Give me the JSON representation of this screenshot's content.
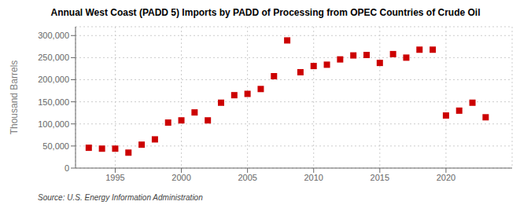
{
  "chart_data": {
    "type": "scatter",
    "title": "Annual West Coast (PADD 5) Imports by PADD of Processing from OPEC Countries of Crude Oil",
    "y_label": "Thousand Barrels",
    "annotations": [
      "Source: U.S. Energy Information Administration"
    ],
    "x": [
      1993,
      1994,
      1995,
      1996,
      1997,
      1998,
      1999,
      2000,
      2001,
      2002,
      2003,
      2004,
      2005,
      2006,
      2007,
      2008,
      2009,
      2010,
      2011,
      2012,
      2013,
      2014,
      2015,
      2016,
      2017,
      2018,
      2019,
      2020,
      2021,
      2022,
      2023
    ],
    "values": [
      46000,
      44000,
      44000,
      35000,
      53000,
      65000,
      103000,
      108000,
      126000,
      108000,
      148000,
      165000,
      168000,
      179000,
      208000,
      289000,
      217000,
      231000,
      234000,
      246000,
      255000,
      256000,
      238000,
      258000,
      250000,
      268000,
      268000,
      119000,
      130000,
      148000,
      115000
    ],
    "color": "#cc0000",
    "marker": "square",
    "xlim": [
      1992,
      2025
    ],
    "xticks": [
      1995,
      2000,
      2005,
      2010,
      2015,
      2020
    ],
    "ylim": [
      0,
      320000
    ],
    "yticks": [
      0,
      {
        "value": 50000,
        "label": "50,000"
      },
      {
        "value": 100000,
        "label": "100,000"
      },
      {
        "value": 150000,
        "label": "150,000"
      },
      {
        "value": 200000,
        "label": "200,000"
      },
      {
        "value": 250000,
        "label": "250,000"
      },
      {
        "value": 300000,
        "label": "300,000"
      }
    ],
    "grid": true
  }
}
